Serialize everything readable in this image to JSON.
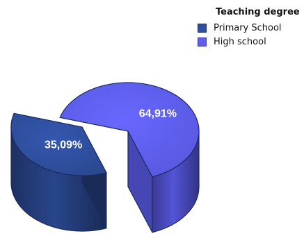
{
  "chart_data": {
    "type": "pie",
    "three_d": true,
    "exploded": true,
    "legend": {
      "title": "Teaching degree",
      "placement": "top-right"
    },
    "categories": [
      "Primary School",
      "High school"
    ],
    "values": [
      35.09,
      64.91
    ],
    "data_labels": [
      "35,09%",
      "64,91%"
    ],
    "colors": [
      "#2E4E9C",
      "#5D5DF0"
    ]
  }
}
